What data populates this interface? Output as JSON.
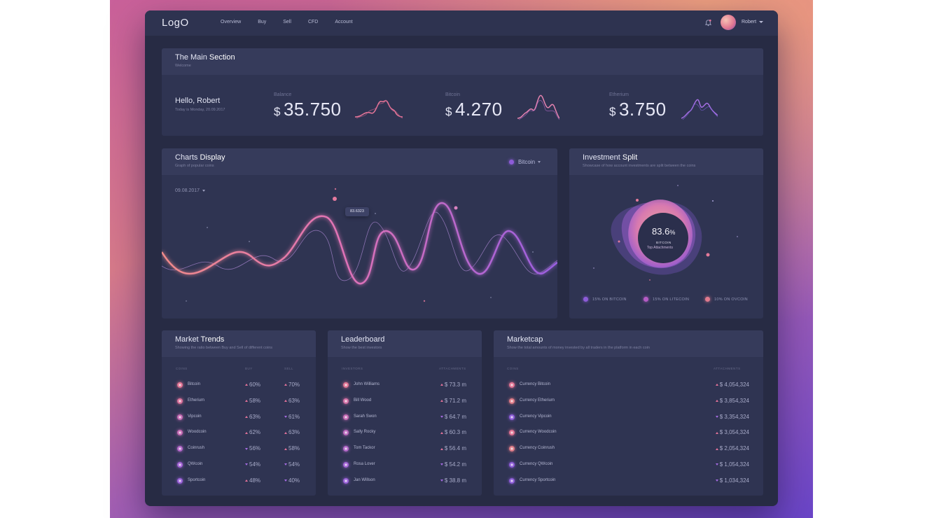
{
  "header": {
    "logo": "LogO",
    "nav": [
      "Overview",
      "Buy",
      "Sell",
      "CFD",
      "Account"
    ],
    "user": "Robert"
  },
  "main_section": {
    "title_a": "The Main ",
    "title_b": "Section",
    "subtitle": "Welcome",
    "greeting": "Hello, Robert",
    "date": "Today is Monday, 20.09.2017",
    "stats": [
      {
        "label": "Balance",
        "currency": "$",
        "value": "35.750",
        "color": "#e9779a"
      },
      {
        "label": "Bitcoin",
        "currency": "$",
        "value": "4.270",
        "color": "#e583b0"
      },
      {
        "label": "Etherium",
        "currency": "$",
        "value": "3.750",
        "color": "#a56fe3"
      }
    ]
  },
  "charts": {
    "title_a": "Charts ",
    "title_b": "Display",
    "subtitle": "Graph of popular coins",
    "coin": "Bitcoin",
    "date": "09.08.2017",
    "tooltip": "83.6323"
  },
  "investment": {
    "title_a": "Investment ",
    "title_b": "Split",
    "subtitle": "Showcase of how account investments are split between the coins",
    "percent": "83.6",
    "percent_sign": "%",
    "coin": "BITCOIN",
    "caption": "Top Attachments",
    "legend": [
      {
        "label": "15% ON BITCOIN",
        "color": "#8d5cd8"
      },
      {
        "label": "15% ON LITECOIN",
        "color": "#b45cc5"
      },
      {
        "label": "10% ON OVCOIN",
        "color": "#e07a8e"
      }
    ]
  },
  "market_trends": {
    "title_a": "Market ",
    "title_b": "Trends",
    "subtitle": "Showing the ratio between Buy and Sell of different coins",
    "columns": [
      "COINS",
      "BUY",
      "SELL"
    ],
    "rows": [
      {
        "name": "Bitcoin",
        "buy": "60%",
        "buy_dir": "up",
        "sell": "70%",
        "sell_dir": "up",
        "color": "#e07292"
      },
      {
        "name": "Etherium",
        "buy": "58%",
        "buy_dir": "up",
        "sell": "63%",
        "sell_dir": "up",
        "color": "#d9709a"
      },
      {
        "name": "Vipcoin",
        "buy": "63%",
        "buy_dir": "up",
        "sell": "61%",
        "sell_dir": "down",
        "color": "#c56ab4"
      },
      {
        "name": "Woodcoin",
        "buy": "62%",
        "buy_dir": "up",
        "sell": "63%",
        "sell_dir": "up",
        "color": "#c56ab4"
      },
      {
        "name": "Coinrush",
        "buy": "56%",
        "buy_dir": "down",
        "sell": "58%",
        "sell_dir": "up",
        "color": "#b266c8"
      },
      {
        "name": "QWcoin",
        "buy": "54%",
        "buy_dir": "down",
        "sell": "54%",
        "sell_dir": "down",
        "color": "#a262d5"
      },
      {
        "name": "Sportcoin",
        "buy": "48%",
        "buy_dir": "up",
        "sell": "40%",
        "sell_dir": "down",
        "color": "#9a60d9"
      }
    ]
  },
  "leaderboard": {
    "title": "Leaderboard",
    "subtitle": "Show the best investors",
    "columns": [
      "INVESTORS",
      "ATTACHMENTS"
    ],
    "rows": [
      {
        "name": "John Williams",
        "value": "$ 73.3 m",
        "dir": "up",
        "color": "#e07292"
      },
      {
        "name": "Bill Wood",
        "value": "$ 71.2 m",
        "dir": "up",
        "color": "#d26ea4"
      },
      {
        "name": "Sarah Swon",
        "value": "$ 64.7 m",
        "dir": "down",
        "color": "#c56ab4"
      },
      {
        "name": "Sally Rocky",
        "value": "$ 60.3 m",
        "dir": "up",
        "color": "#bb68bd"
      },
      {
        "name": "Tom Tackor",
        "value": "$ 56.4 m",
        "dir": "up",
        "color": "#b266c8"
      },
      {
        "name": "Rosa Lover",
        "value": "$ 54.2 m",
        "dir": "down",
        "color": "#a262d5"
      },
      {
        "name": "Jan Willson",
        "value": "$ 38.8 m",
        "dir": "down",
        "color": "#9a60d9"
      }
    ]
  },
  "marketcap": {
    "title": "Marketcap",
    "subtitle": "Show the total amounts of money invested by all traders in the platform in each coin",
    "columns": [
      "COINS",
      "ATTACHMENTS"
    ],
    "rows": [
      {
        "name": "Currency Bitcoin",
        "value": "$ 4,054,324",
        "dir": "up",
        "color": "#e07292"
      },
      {
        "name": "Currency Etherium",
        "value": "$ 3,854,324",
        "dir": "up",
        "color": "#de7a86"
      },
      {
        "name": "Currency Vipcoin",
        "value": "$ 3,354,324",
        "dir": "down",
        "color": "#8d5cd8"
      },
      {
        "name": "Currency Woodcoin",
        "value": "$ 3,054,324",
        "dir": "up",
        "color": "#e07292"
      },
      {
        "name": "Currency Coinrush",
        "value": "$ 2,054,324",
        "dir": "up",
        "color": "#de7a86"
      },
      {
        "name": "Currency QWcoin",
        "value": "$ 1,054,324",
        "dir": "down",
        "color": "#8d5cd8"
      },
      {
        "name": "Currency Sportcoin",
        "value": "$ 1,034,324",
        "dir": "down",
        "color": "#8d5cd8"
      }
    ]
  }
}
